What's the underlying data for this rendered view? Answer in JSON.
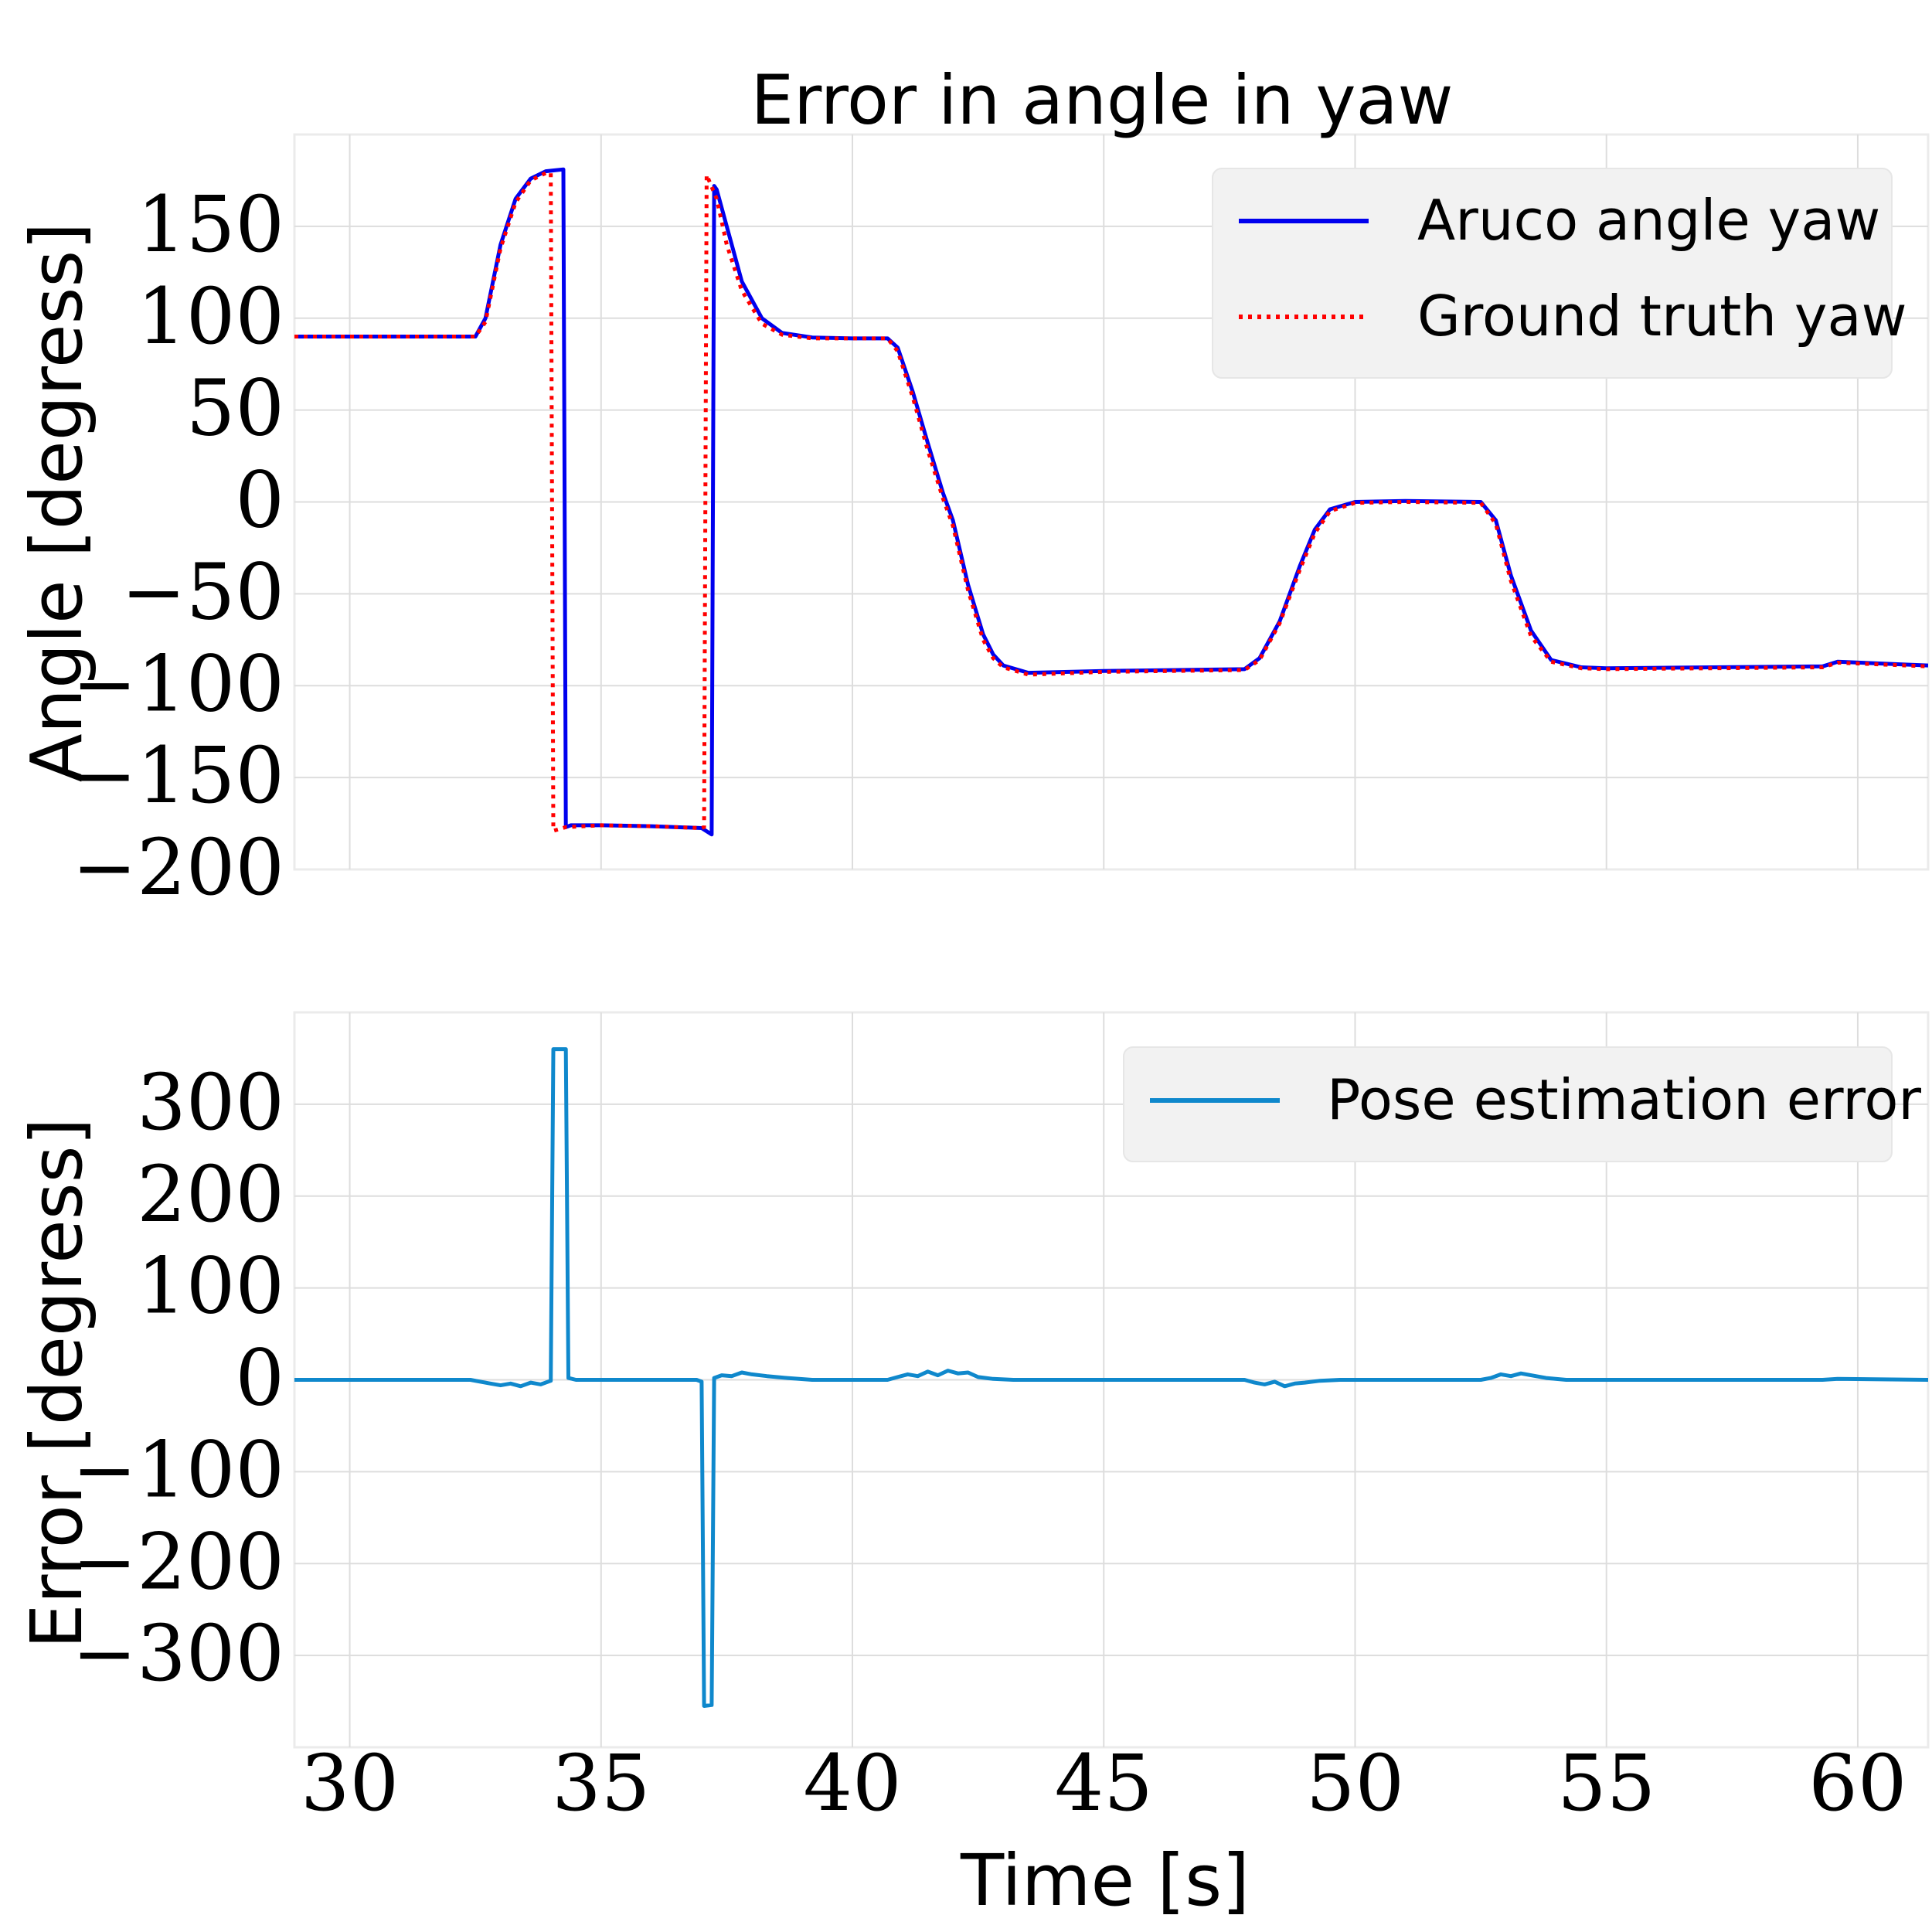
{
  "chart_data": [
    {
      "type": "line",
      "title": "Error in angle in yaw",
      "xlabel": "",
      "ylabel": "Angle [degress]",
      "xlim": [
        28.9,
        61.4
      ],
      "ylim": [
        -200,
        200
      ],
      "yticks": [
        150,
        100,
        50,
        0,
        -50,
        -100,
        -150,
        -200
      ],
      "ytick_labels": [
        "150",
        "100",
        "50",
        "0",
        "−50",
        "−100",
        "−150",
        "−200"
      ],
      "xticks": [
        30,
        35,
        40,
        45,
        50,
        55,
        60
      ],
      "grid": true,
      "legend_position": "top-right",
      "series": [
        {
          "name": "Aruco angle yaw",
          "color": "#0000ee",
          "style": "solid",
          "x": [
            28.9,
            32.5,
            32.7,
            33.0,
            33.3,
            33.6,
            33.9,
            34.25,
            34.3,
            34.4,
            35.0,
            36.0,
            37.0,
            37.2,
            37.25,
            37.3,
            37.5,
            37.8,
            38.2,
            38.6,
            39.2,
            40.0,
            40.7,
            40.9,
            41.2,
            41.5,
            41.8,
            42.0,
            42.3,
            42.6,
            42.8,
            43.0,
            43.5,
            45.0,
            47.8,
            48.1,
            48.5,
            48.9,
            49.2,
            49.5,
            50.0,
            51.0,
            52.5,
            52.8,
            53.1,
            53.5,
            53.9,
            54.5,
            55.0,
            59.3,
            59.6,
            61.4
          ],
          "y": [
            90,
            90,
            100,
            140,
            165,
            176,
            180,
            181,
            -177,
            -176,
            -176,
            -176.5,
            -177.5,
            -181,
            172,
            170,
            150,
            120,
            100,
            92,
            89.5,
            89,
            89,
            84,
            60,
            32,
            5,
            -10,
            -45,
            -72,
            -83,
            -89,
            -93,
            -92,
            -91,
            -85,
            -65,
            -35,
            -15,
            -4,
            0,
            0.5,
            0,
            -10,
            -40,
            -70,
            -86,
            -90,
            -90.5,
            -89.5,
            -87,
            -89
          ]
        },
        {
          "name": "Ground truth yaw",
          "color": "#ff0000",
          "style": "dotted",
          "x": [
            28.9,
            32.5,
            32.7,
            33.0,
            33.3,
            33.6,
            33.9,
            34.0,
            34.05,
            34.3,
            35.0,
            36.0,
            37.0,
            37.05,
            37.1,
            37.3,
            37.5,
            37.8,
            38.2,
            38.6,
            39.2,
            40.0,
            40.7,
            40.9,
            41.2,
            41.5,
            41.8,
            42.0,
            42.3,
            42.6,
            42.8,
            43.0,
            43.5,
            45.0,
            47.8,
            48.1,
            48.5,
            48.9,
            49.2,
            49.5,
            50.0,
            51.0,
            52.5,
            52.8,
            53.1,
            53.5,
            53.9,
            54.5,
            55.0,
            59.3,
            59.6,
            61.4
          ],
          "y": [
            90,
            90,
            98,
            138,
            163,
            175,
            179,
            179,
            -179,
            -177,
            -176,
            -176.5,
            -177.5,
            -177,
            178,
            165,
            140,
            115,
            97,
            91,
            89,
            89,
            89,
            82,
            57,
            28,
            2,
            -13,
            -48,
            -75,
            -85,
            -90,
            -94,
            -92.5,
            -91.5,
            -86,
            -66,
            -37,
            -17,
            -5,
            -0.5,
            0,
            -0.5,
            -12,
            -43,
            -73,
            -87,
            -90.5,
            -91,
            -90,
            -87.5,
            -89.5
          ]
        }
      ]
    },
    {
      "type": "line",
      "title": "",
      "xlabel": "Time [s]",
      "ylabel": "Error [degress]",
      "xlim": [
        28.9,
        61.4
      ],
      "ylim": [
        -400,
        400
      ],
      "yticks": [
        300,
        200,
        100,
        0,
        -100,
        -200,
        -300
      ],
      "ytick_labels": [
        "300",
        "200",
        "100",
        "0",
        "−100",
        "−200",
        "−300"
      ],
      "xticks": [
        30,
        35,
        40,
        45,
        50,
        55,
        60
      ],
      "xtick_labels": [
        "30",
        "35",
        "40",
        "45",
        "50",
        "55",
        "60"
      ],
      "grid": true,
      "legend_position": "top-right",
      "series": [
        {
          "name": "Pose estimation error",
          "color": "#0f88cc",
          "style": "solid",
          "x": [
            28.9,
            32.4,
            32.6,
            32.8,
            33.0,
            33.2,
            33.4,
            33.6,
            33.8,
            34.0,
            34.05,
            34.3,
            34.35,
            34.5,
            36.9,
            37.0,
            37.05,
            37.2,
            37.25,
            37.4,
            37.6,
            37.8,
            38.0,
            38.3,
            38.7,
            39.2,
            40.7,
            40.9,
            41.1,
            41.3,
            41.5,
            41.7,
            41.9,
            42.1,
            42.3,
            42.5,
            42.8,
            43.2,
            47.8,
            48.0,
            48.2,
            48.4,
            48.6,
            48.8,
            49.0,
            49.3,
            49.7,
            52.5,
            52.7,
            52.9,
            53.1,
            53.3,
            53.5,
            53.8,
            54.2,
            59.3,
            59.6,
            61.4
          ],
          "y": [
            0,
            0,
            -2,
            -4,
            -6,
            -4,
            -7,
            -3,
            -5,
            -1,
            360,
            360,
            2,
            0,
            0,
            -2,
            -355,
            -354,
            2,
            5,
            4,
            8,
            6,
            4,
            2,
            0,
            0,
            3,
            6,
            4,
            9,
            5,
            10,
            7,
            8,
            3,
            1,
            0,
            0,
            -3,
            -5,
            -2,
            -7,
            -4,
            -3,
            -1,
            0,
            0,
            2,
            6,
            4,
            7,
            5,
            2,
            0,
            0,
            1,
            0
          ]
        }
      ]
    }
  ]
}
